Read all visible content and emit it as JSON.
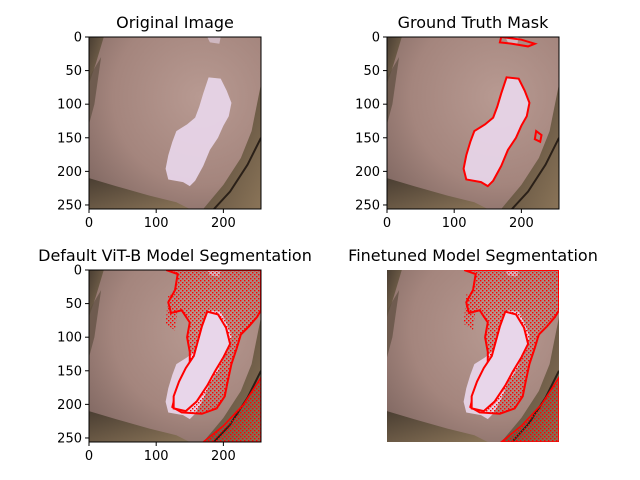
{
  "figure": {
    "panels": [
      {
        "title": "Original Image",
        "xticks": [
          "0",
          "100",
          "200"
        ],
        "yticks": [
          "0",
          "50",
          "100",
          "150",
          "200",
          "250"
        ],
        "overlay": "none",
        "show_axes": true
      },
      {
        "title": "Ground Truth Mask",
        "xticks": [
          "0",
          "100",
          "200"
        ],
        "yticks": [
          "0",
          "50",
          "100",
          "150",
          "200",
          "250"
        ],
        "overlay": "contour",
        "show_axes": true
      },
      {
        "title": "Default ViT-B Model Segmentation",
        "xticks": [
          "0",
          "100",
          "200"
        ],
        "yticks": [
          "0",
          "50",
          "100",
          "150",
          "200",
          "250"
        ],
        "overlay": "segmentation",
        "show_axes": true
      },
      {
        "title": "Finetuned Model Segmentation",
        "xticks": [],
        "yticks": [],
        "overlay": "segmentation",
        "show_axes": false
      }
    ],
    "colors": {
      "skin": "#a68a84",
      "lesion": "#e8d6ea",
      "background_fabric": "#6e5c48",
      "contour": "#ff0000",
      "axis": "#000000"
    }
  },
  "chart_data": [
    {
      "type": "heatmap",
      "title": "Original Image",
      "xlim": [
        0,
        256
      ],
      "ylim": [
        256,
        0
      ],
      "xticks": [
        0,
        100,
        200
      ],
      "yticks": [
        0,
        50,
        100,
        150,
        200,
        250
      ]
    },
    {
      "type": "heatmap",
      "title": "Ground Truth Mask",
      "xlim": [
        0,
        256
      ],
      "ylim": [
        256,
        0
      ],
      "xticks": [
        0,
        100,
        200
      ],
      "yticks": [
        0,
        50,
        100,
        150,
        200,
        250
      ]
    },
    {
      "type": "heatmap",
      "title": "Default ViT-B Model Segmentation",
      "xlim": [
        0,
        256
      ],
      "ylim": [
        256,
        0
      ],
      "xticks": [
        0,
        100,
        200
      ],
      "yticks": [
        0,
        50,
        100,
        150,
        200,
        250
      ]
    },
    {
      "type": "heatmap",
      "title": "Finetuned Model Segmentation",
      "xlim": [
        0,
        256
      ],
      "ylim": [
        256,
        0
      ],
      "xticks": [],
      "yticks": []
    }
  ]
}
